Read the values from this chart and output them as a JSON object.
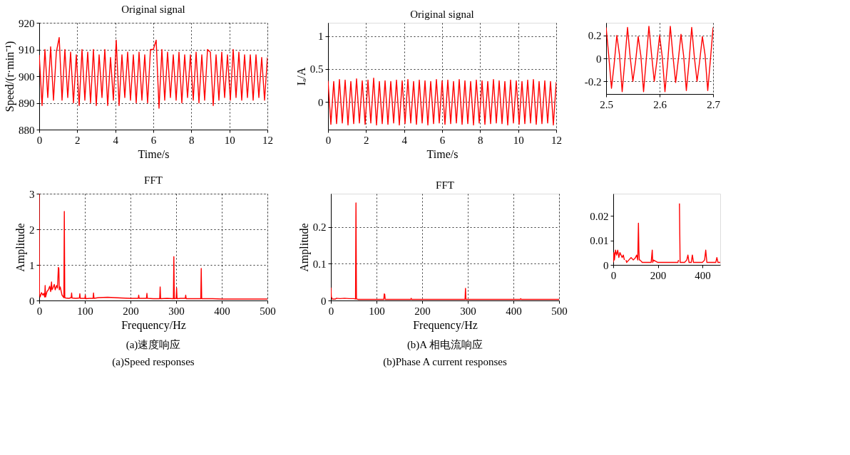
{
  "chart_data": [
    {
      "type": "line",
      "title": "Original signal",
      "xlabel": "Time/s",
      "ylabel": "Speed/(r·min⁻¹)",
      "color": "#ff0000",
      "line_style": "solid",
      "grid": true,
      "xlim": [
        0,
        12
      ],
      "xticks": [
        0,
        2,
        4,
        6,
        8,
        10,
        12
      ],
      "ylim": [
        880,
        920
      ],
      "yticks": [
        880,
        890,
        900,
        910,
        920
      ],
      "x": [
        0,
        0.15,
        0.3,
        0.45,
        0.6,
        0.75,
        0.9,
        1.05,
        1.2,
        1.35,
        1.5,
        1.65,
        1.8,
        1.95,
        2.1,
        2.25,
        2.4,
        2.55,
        2.7,
        2.85,
        3,
        3.15,
        3.3,
        3.45,
        3.6,
        3.75,
        3.9,
        4.05,
        4.2,
        4.35,
        4.5,
        4.65,
        4.8,
        4.95,
        5.1,
        5.25,
        5.4,
        5.55,
        5.7,
        5.85,
        6,
        6.15,
        6.3,
        6.45,
        6.6,
        6.75,
        6.9,
        7.05,
        7.2,
        7.35,
        7.5,
        7.65,
        7.8,
        7.95,
        8.1,
        8.25,
        8.4,
        8.55,
        8.7,
        8.85,
        9,
        9.15,
        9.3,
        9.45,
        9.6,
        9.75,
        9.9,
        10.05,
        10.2,
        10.35,
        10.5,
        10.65,
        10.8,
        10.95,
        11.1,
        11.25,
        11.4,
        11.55,
        11.7,
        11.85,
        12
      ],
      "values": [
        908,
        889,
        910,
        892,
        911,
        891,
        909,
        914.5,
        891,
        910,
        892,
        909,
        890,
        908,
        889,
        910,
        891,
        909,
        890,
        910,
        889,
        908,
        892,
        910,
        889,
        907,
        891,
        913.5,
        889,
        908,
        892,
        909,
        891,
        908,
        890,
        909,
        891,
        908,
        890,
        910,
        910,
        913.5,
        888,
        910,
        891,
        909,
        892,
        908,
        891,
        909,
        890,
        908,
        892,
        908,
        891,
        909,
        890,
        908,
        891,
        910,
        909,
        889,
        908,
        891,
        909,
        892,
        908,
        891,
        910,
        892,
        909,
        891,
        908,
        892,
        908,
        891,
        908,
        892,
        907,
        891,
        907
      ]
    },
    {
      "type": "line",
      "title": "Original signal",
      "xlabel": "Time/s",
      "ylabel": "Iₐ/A",
      "color": "#ff0000",
      "line_style": "solid",
      "grid": true,
      "xlim": [
        0,
        12
      ],
      "xticks": [
        0,
        2,
        4,
        6,
        8,
        10,
        12
      ],
      "ylim": [
        -0.42,
        1.2
      ],
      "yticks": [
        0,
        0.5,
        1
      ],
      "x": [
        0,
        0.15,
        0.3,
        0.45,
        0.6,
        0.75,
        0.9,
        1.05,
        1.2,
        1.35,
        1.5,
        1.65,
        1.8,
        1.95,
        2.1,
        2.25,
        2.4,
        2.55,
        2.7,
        2.85,
        3,
        3.15,
        3.3,
        3.45,
        3.6,
        3.75,
        3.9,
        4.05,
        4.2,
        4.35,
        4.5,
        4.65,
        4.8,
        4.95,
        5.1,
        5.25,
        5.4,
        5.55,
        5.7,
        5.85,
        6,
        6.15,
        6.3,
        6.45,
        6.6,
        6.75,
        6.9,
        7.05,
        7.2,
        7.35,
        7.5,
        7.65,
        7.8,
        7.95,
        8.1,
        8.25,
        8.4,
        8.55,
        8.7,
        8.85,
        9,
        9.15,
        9.3,
        9.45,
        9.6,
        9.75,
        9.9,
        10.05,
        10.2,
        10.35,
        10.5,
        10.65,
        10.8,
        10.95,
        11.1,
        11.25,
        11.4,
        11.55,
        11.7,
        11.85,
        12
      ],
      "values": [
        0.32,
        -0.34,
        0.31,
        -0.33,
        0.34,
        -0.32,
        0.33,
        -0.35,
        0.31,
        -0.33,
        0.35,
        -0.32,
        0.32,
        -0.34,
        0.33,
        -0.32,
        0.36,
        -0.35,
        0.31,
        -0.33,
        0.32,
        -0.34,
        0.31,
        -0.32,
        0.33,
        -0.35,
        0.32,
        -0.33,
        0.34,
        -0.32,
        0.31,
        -0.34,
        0.33,
        -0.32,
        0.32,
        -0.35,
        0.31,
        -0.33,
        0.34,
        -0.32,
        0.32,
        -0.34,
        0.33,
        -0.33,
        0.31,
        -0.32,
        0.34,
        -0.34,
        0.32,
        -0.33,
        0.31,
        -0.35,
        0.33,
        -0.32,
        0.32,
        -0.34,
        0.31,
        -0.33,
        0.34,
        -0.32,
        0.32,
        -0.33,
        0.31,
        -0.35,
        0.33,
        -0.32,
        0.32,
        -0.34,
        0.31,
        -0.33,
        0.33,
        -0.32,
        0.34,
        -0.34,
        0.31,
        -0.33,
        0.32,
        -0.32,
        0.31,
        -0.35,
        0.3
      ]
    },
    {
      "type": "line",
      "color": "#ff0000",
      "line_style": "solid",
      "grid": true,
      "xlim": [
        2.5,
        2.7
      ],
      "xticks": [
        2.5,
        2.6,
        2.7
      ],
      "ylim": [
        -0.31,
        0.31
      ],
      "yticks": [
        -0.2,
        0,
        0.2
      ],
      "x": [
        2.5,
        2.505,
        2.51,
        2.515,
        2.52,
        2.525,
        2.53,
        2.535,
        2.54,
        2.545,
        2.55,
        2.555,
        2.56,
        2.565,
        2.57,
        2.575,
        2.58,
        2.585,
        2.59,
        2.595,
        2.6,
        2.605,
        2.61,
        2.615,
        2.62,
        2.625,
        2.63,
        2.635,
        2.64,
        2.645,
        2.65,
        2.655,
        2.66,
        2.665,
        2.67,
        2.675,
        2.68,
        2.685,
        2.69,
        2.695,
        2.7
      ],
      "values": [
        0.27,
        0.02,
        -0.26,
        -0.05,
        0.2,
        0.03,
        -0.29,
        -0.02,
        0.27,
        0.01,
        -0.2,
        -0.03,
        0.19,
        0.02,
        -0.29,
        -0.01,
        0.28,
        0.03,
        -0.2,
        -0.02,
        0.2,
        0.01,
        -0.29,
        -0.04,
        0.28,
        0.02,
        -0.21,
        -0.01,
        0.21,
        0.02,
        -0.28,
        -0.03,
        0.27,
        0.01,
        -0.2,
        -0.02,
        0.19,
        0.03,
        -0.28,
        -0.01,
        0.27
      ]
    },
    {
      "type": "line",
      "title": "FFT",
      "xlabel": "Frequency/Hz",
      "ylabel": "Amplitude",
      "color": "#ff0000",
      "line_style": "solid",
      "grid": true,
      "xlim": [
        0,
        500
      ],
      "xticks": [
        0,
        100,
        200,
        300,
        400,
        500
      ],
      "ylim": [
        0,
        3
      ],
      "yticks": [
        0,
        1,
        2,
        3
      ],
      "x": [
        0,
        0.5,
        2,
        5,
        8,
        10,
        12,
        13,
        14,
        17,
        20,
        23,
        25,
        27,
        28,
        30,
        33,
        35,
        38,
        40,
        42,
        43,
        44,
        46,
        50,
        54,
        55,
        56,
        58,
        65,
        70,
        71,
        72,
        80,
        88,
        89,
        90,
        100,
        101,
        102,
        110,
        118,
        119,
        120,
        130,
        150,
        180,
        200,
        217,
        218,
        219,
        235,
        236,
        237,
        250,
        264,
        265,
        266,
        280,
        294,
        295,
        296,
        300,
        301,
        302,
        310,
        320,
        321,
        322,
        340,
        354,
        355,
        356,
        380,
        400,
        450,
        500
      ],
      "values": [
        3,
        0.2,
        0.1,
        0.22,
        0.15,
        0.2,
        0.1,
        0.42,
        0.1,
        0.25,
        0.3,
        0.4,
        0.25,
        0.52,
        0.3,
        0.35,
        0.45,
        0.3,
        0.42,
        0.35,
        0.93,
        0.9,
        0.3,
        0.38,
        0.15,
        0.08,
        2.5,
        0.08,
        0.07,
        0.06,
        0.08,
        0.21,
        0.07,
        0.06,
        0.07,
        0.19,
        0.06,
        0.06,
        0.15,
        0.05,
        0.06,
        0.06,
        0.21,
        0.06,
        0.08,
        0.09,
        0.07,
        0.06,
        0.06,
        0.15,
        0.06,
        0.06,
        0.2,
        0.06,
        0.05,
        0.05,
        0.38,
        0.05,
        0.06,
        0.05,
        1.23,
        0.05,
        0.06,
        0.35,
        0.05,
        0.06,
        0.06,
        0.15,
        0.05,
        0.05,
        0.05,
        0.9,
        0.05,
        0.05,
        0.04,
        0.04,
        0.04
      ],
      "annotations": [
        "(a)速度响应",
        "(a)Speed responses"
      ]
    },
    {
      "type": "line",
      "title": "FFT",
      "xlabel": "Frequency/Hz",
      "ylabel": "Amplitude",
      "color": "#ff0000",
      "line_style": "solid",
      "grid": true,
      "xlim": [
        0,
        500
      ],
      "xticks": [
        0,
        100,
        200,
        300,
        400,
        500
      ],
      "ylim": [
        0,
        0.29
      ],
      "yticks": [
        0,
        0.1,
        0.2
      ],
      "x": [
        0,
        1,
        3,
        10,
        12,
        20,
        30,
        40,
        50,
        54,
        55,
        56,
        60,
        80,
        100,
        116,
        117,
        118,
        119,
        121,
        150,
        175,
        176,
        177,
        200,
        250,
        294,
        295,
        296,
        300,
        350,
        415,
        416,
        417,
        450,
        500
      ],
      "values": [
        0.035,
        0.01,
        0.004,
        0.004,
        0.006,
        0.005,
        0.006,
        0.005,
        0.005,
        0.004,
        0.265,
        0.004,
        0.003,
        0.003,
        0.003,
        0.003,
        0.018,
        0.017,
        0.003,
        0.003,
        0.003,
        0.003,
        0.006,
        0.003,
        0.003,
        0.003,
        0.003,
        0.033,
        0.003,
        0.003,
        0.003,
        0.003,
        0.005,
        0.003,
        0.003,
        0.003
      ],
      "annotations": [
        "(b)A 相电流响应",
        "(b)Phase A current responses"
      ]
    },
    {
      "type": "line",
      "color": "#ff0000",
      "line_style": "solid",
      "grid": false,
      "xlim": [
        0,
        480
      ],
      "xticks": [
        0,
        200,
        400
      ],
      "ylim": [
        0,
        0.029
      ],
      "yticks": [
        0,
        0.01,
        0.02
      ],
      "x": [
        0,
        3,
        5,
        10,
        15,
        20,
        25,
        30,
        35,
        40,
        45,
        50,
        53,
        55,
        57,
        60,
        70,
        80,
        90,
        100,
        105,
        110,
        113,
        115,
        117,
        120,
        130,
        150,
        170,
        175,
        177,
        180,
        200,
        220,
        250,
        280,
        290,
        293,
        295,
        297,
        300,
        320,
        330,
        335,
        340,
        350,
        355,
        360,
        380,
        400,
        410,
        415,
        420,
        440,
        460,
        465,
        470,
        480
      ],
      "values": [
        0.001,
        0.005,
        0.002,
        0.006,
        0.004,
        0.006,
        0.003,
        0.005,
        0.004,
        0.003,
        0.004,
        0.002,
        null,
        null,
        0.002,
        0.001,
        0.002,
        0.003,
        0.002,
        0.003,
        0.004,
        0.002,
        0.017,
        0.006,
        0.002,
        0.002,
        0.001,
        0.001,
        0.001,
        0.006,
        0.001,
        0.002,
        0.001,
        0.001,
        0.001,
        0.001,
        0.001,
        0.002,
        null,
        0.025,
        0.001,
        0.001,
        0.002,
        0.004,
        0.001,
        0.001,
        0.004,
        0.001,
        0.001,
        0.001,
        0.002,
        0.006,
        0.001,
        0.001,
        0.001,
        0.003,
        0.001,
        0.001
      ]
    }
  ]
}
